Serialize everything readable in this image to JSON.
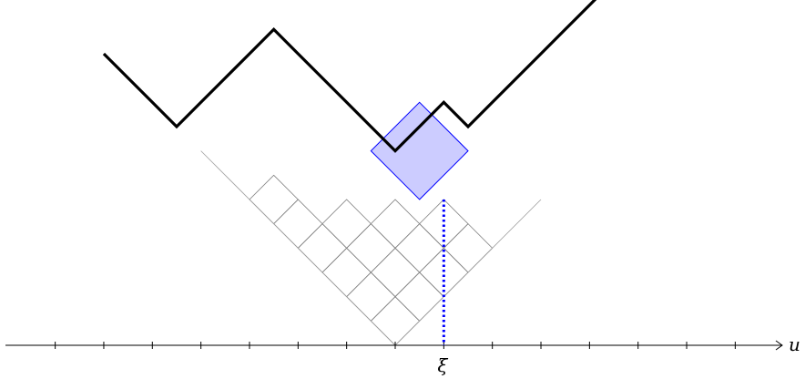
{
  "axis": {
    "label": "u"
  },
  "marker": {
    "label": "ξ"
  },
  "profile": {
    "slopes": [
      -1,
      -1,
      -1,
      1,
      1,
      1,
      1,
      -1,
      -1,
      -1,
      -1,
      -1,
      1,
      1,
      -1,
      1,
      1,
      1,
      1,
      1,
      1,
      1,
      1,
      1,
      1
    ],
    "cell_grid": {
      "ranges": [
        [
          0,
          4
        ],
        [
          0,
          4
        ],
        [
          0,
          3
        ],
        [
          0,
          2
        ],
        [
          0,
          1
        ],
        [
          0,
          1
        ]
      ]
    }
  },
  "highlight": {
    "u_position": 1,
    "color": "#ccccff",
    "stroke": "#0000ff"
  },
  "colors": {
    "profile": "#000000",
    "grid": "#808080",
    "guide": "#0000ff"
  }
}
